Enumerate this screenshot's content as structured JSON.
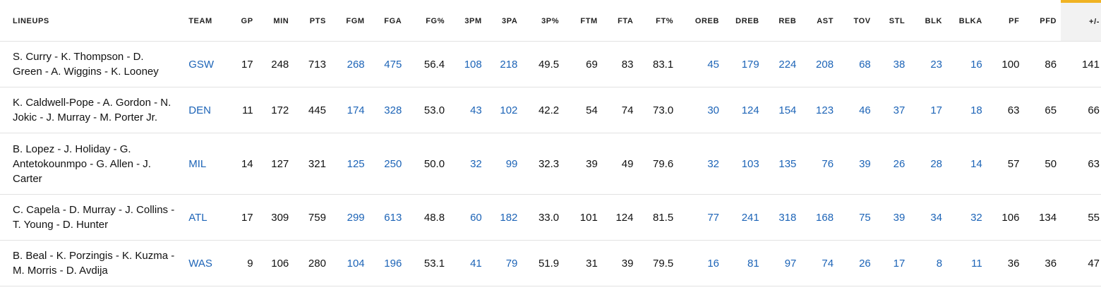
{
  "columns": [
    "LINEUPS",
    "TEAM",
    "GP",
    "MIN",
    "PTS",
    "FGM",
    "FGA",
    "FG%",
    "3PM",
    "3PA",
    "3P%",
    "FTM",
    "FTA",
    "FT%",
    "OREB",
    "DREB",
    "REB",
    "AST",
    "TOV",
    "STL",
    "BLK",
    "BLKA",
    "PF",
    "PFD",
    "+/-"
  ],
  "rows": [
    {
      "lineup": "S. Curry - K. Thompson - D. Green - A. Wiggins - K. Looney",
      "team": "GSW",
      "gp": "17",
      "min": "248",
      "pts": "713",
      "fgm": "268",
      "fga": "475",
      "fg_pct": "56.4",
      "tpm": "108",
      "tpa": "218",
      "tp_pct": "49.5",
      "ftm": "69",
      "fta": "83",
      "ft_pct": "83.1",
      "oreb": "45",
      "dreb": "179",
      "reb": "224",
      "ast": "208",
      "tov": "68",
      "stl": "38",
      "blk": "23",
      "blka": "16",
      "pf": "100",
      "pfd": "86",
      "plus_minus": "141"
    },
    {
      "lineup": "K. Caldwell-Pope - A. Gordon - N. Jokic - J. Murray - M. Porter Jr.",
      "team": "DEN",
      "gp": "11",
      "min": "172",
      "pts": "445",
      "fgm": "174",
      "fga": "328",
      "fg_pct": "53.0",
      "tpm": "43",
      "tpa": "102",
      "tp_pct": "42.2",
      "ftm": "54",
      "fta": "74",
      "ft_pct": "73.0",
      "oreb": "30",
      "dreb": "124",
      "reb": "154",
      "ast": "123",
      "tov": "46",
      "stl": "37",
      "blk": "17",
      "blka": "18",
      "pf": "63",
      "pfd": "65",
      "plus_minus": "66"
    },
    {
      "lineup": "B. Lopez - J. Holiday - G. Antetokounmpo - G. Allen - J. Carter",
      "team": "MIL",
      "gp": "14",
      "min": "127",
      "pts": "321",
      "fgm": "125",
      "fga": "250",
      "fg_pct": "50.0",
      "tpm": "32",
      "tpa": "99",
      "tp_pct": "32.3",
      "ftm": "39",
      "fta": "49",
      "ft_pct": "79.6",
      "oreb": "32",
      "dreb": "103",
      "reb": "135",
      "ast": "76",
      "tov": "39",
      "stl": "26",
      "blk": "28",
      "blka": "14",
      "pf": "57",
      "pfd": "50",
      "plus_minus": "63"
    },
    {
      "lineup": "C. Capela - D. Murray - J. Collins - T. Young - D. Hunter",
      "team": "ATL",
      "gp": "17",
      "min": "309",
      "pts": "759",
      "fgm": "299",
      "fga": "613",
      "fg_pct": "48.8",
      "tpm": "60",
      "tpa": "182",
      "tp_pct": "33.0",
      "ftm": "101",
      "fta": "124",
      "ft_pct": "81.5",
      "oreb": "77",
      "dreb": "241",
      "reb": "318",
      "ast": "168",
      "tov": "75",
      "stl": "39",
      "blk": "34",
      "blka": "32",
      "pf": "106",
      "pfd": "134",
      "plus_minus": "55"
    },
    {
      "lineup": "B. Beal - K. Porzingis - K. Kuzma - M. Morris - D. Avdija",
      "team": "WAS",
      "gp": "9",
      "min": "106",
      "pts": "280",
      "fgm": "104",
      "fga": "196",
      "fg_pct": "53.1",
      "tpm": "41",
      "tpa": "79",
      "tp_pct": "51.9",
      "ftm": "31",
      "fta": "39",
      "ft_pct": "79.5",
      "oreb": "16",
      "dreb": "81",
      "reb": "97",
      "ast": "74",
      "tov": "26",
      "stl": "17",
      "blk": "8",
      "blka": "11",
      "pf": "36",
      "pfd": "36",
      "plus_minus": "47"
    }
  ],
  "colors": {
    "link": "#1d64b7",
    "sorted_accent": "#f0b323",
    "sorted_bg": "#f2f2f2"
  }
}
